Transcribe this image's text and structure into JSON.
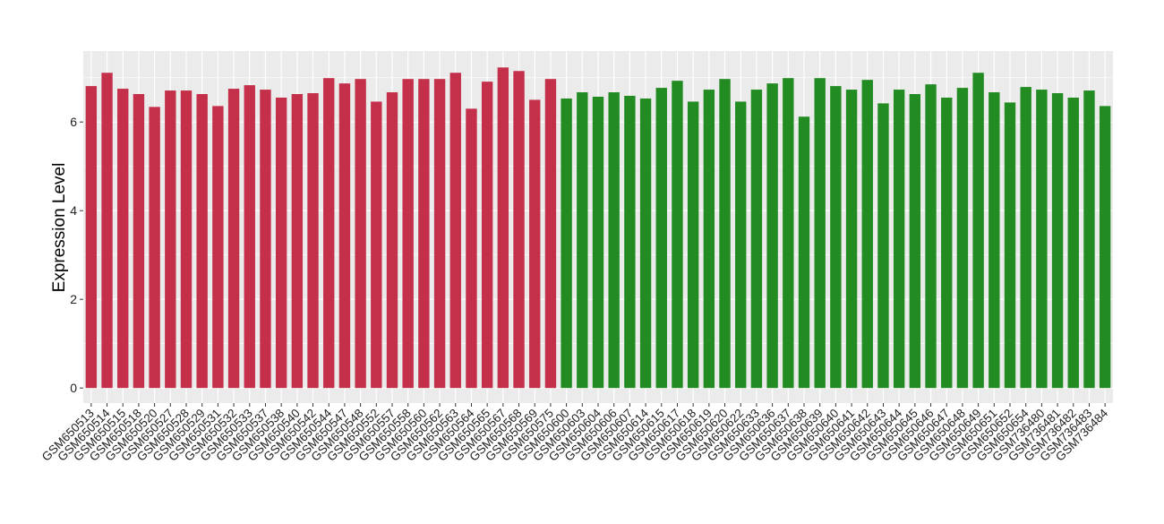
{
  "chart_data": {
    "type": "bar",
    "title": "",
    "xlabel": "",
    "ylabel": "Expression Level",
    "ylim": [
      -0.34,
      7.6
    ],
    "yticks": [
      0,
      2,
      4,
      6
    ],
    "grid": true,
    "legend": "none",
    "colors": {
      "group1": "#C43049",
      "group2": "#228B22",
      "panel": "#EBEBEB"
    },
    "categories": [
      "GSM650513",
      "GSM650514",
      "GSM650515",
      "GSM650518",
      "GSM650520",
      "GSM650527",
      "GSM650528",
      "GSM650529",
      "GSM650531",
      "GSM650532",
      "GSM650533",
      "GSM650537",
      "GSM650538",
      "GSM650540",
      "GSM650542",
      "GSM650544",
      "GSM650547",
      "GSM650548",
      "GSM650552",
      "GSM650557",
      "GSM650558",
      "GSM650560",
      "GSM650562",
      "GSM650563",
      "GSM650564",
      "GSM650565",
      "GSM650567",
      "GSM650568",
      "GSM650569",
      "GSM650575",
      "GSM650600",
      "GSM650603",
      "GSM650604",
      "GSM650606",
      "GSM650607",
      "GSM650614",
      "GSM650615",
      "GSM650617",
      "GSM650618",
      "GSM650619",
      "GSM650620",
      "GSM650622",
      "GSM650633",
      "GSM650636",
      "GSM650637",
      "GSM650638",
      "GSM650639",
      "GSM650640",
      "GSM650641",
      "GSM650642",
      "GSM650643",
      "GSM650644",
      "GSM650645",
      "GSM650646",
      "GSM650647",
      "GSM650648",
      "GSM650649",
      "GSM650651",
      "GSM650652",
      "GSM650654",
      "GSM736480",
      "GSM736481",
      "GSM736482",
      "GSM736483",
      "GSM736484"
    ],
    "values": [
      6.81,
      7.11,
      6.75,
      6.63,
      6.34,
      6.71,
      6.71,
      6.63,
      6.36,
      6.75,
      6.83,
      6.73,
      6.55,
      6.63,
      6.65,
      6.99,
      6.87,
      6.97,
      6.46,
      6.67,
      6.97,
      6.97,
      6.97,
      7.11,
      6.3,
      6.91,
      7.23,
      7.15,
      6.5,
      6.97,
      6.53,
      6.67,
      6.57,
      6.67,
      6.59,
      6.53,
      6.77,
      6.93,
      6.46,
      6.73,
      6.97,
      6.46,
      6.73,
      6.87,
      6.99,
      6.12,
      6.99,
      6.81,
      6.73,
      6.95,
      6.42,
      6.73,
      6.63,
      6.85,
      6.55,
      6.77,
      7.11,
      6.67,
      6.44,
      6.79,
      6.73,
      6.65,
      6.55,
      6.71,
      6.36
    ],
    "groups": [
      "group1",
      "group1",
      "group1",
      "group1",
      "group1",
      "group1",
      "group1",
      "group1",
      "group1",
      "group1",
      "group1",
      "group1",
      "group1",
      "group1",
      "group1",
      "group1",
      "group1",
      "group1",
      "group1",
      "group1",
      "group1",
      "group1",
      "group1",
      "group1",
      "group1",
      "group1",
      "group1",
      "group1",
      "group1",
      "group1",
      "group2",
      "group2",
      "group2",
      "group2",
      "group2",
      "group2",
      "group2",
      "group2",
      "group2",
      "group2",
      "group2",
      "group2",
      "group2",
      "group2",
      "group2",
      "group2",
      "group2",
      "group2",
      "group2",
      "group2",
      "group2",
      "group2",
      "group2",
      "group2",
      "group2",
      "group2",
      "group2",
      "group2",
      "group2",
      "group2",
      "group2",
      "group2",
      "group2",
      "group2",
      "group2"
    ]
  }
}
